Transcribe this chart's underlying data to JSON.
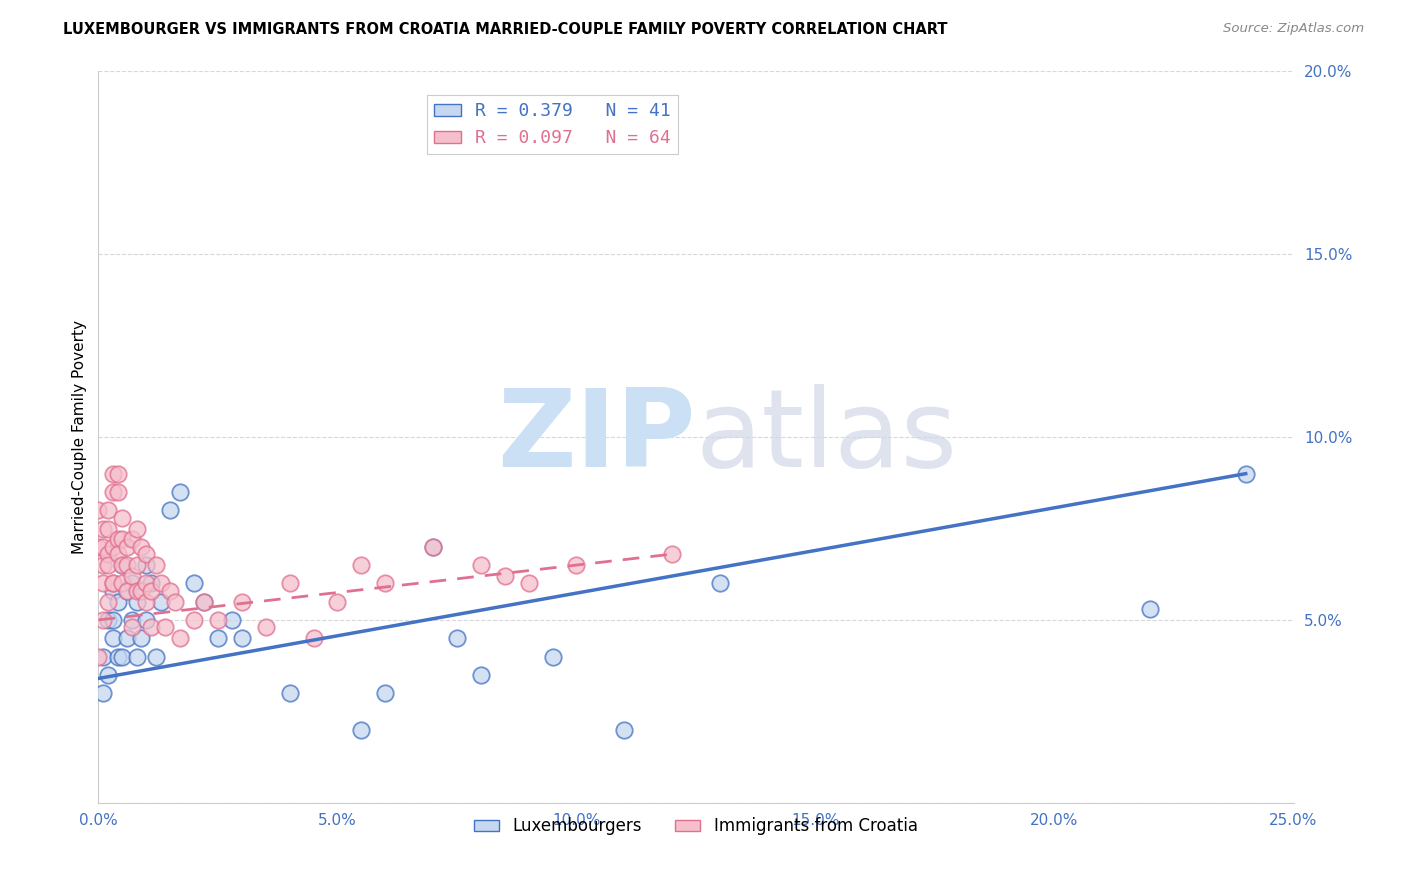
{
  "title": "LUXEMBOURGER VS IMMIGRANTS FROM CROATIA MARRIED-COUPLE FAMILY POVERTY CORRELATION CHART",
  "source": "Source: ZipAtlas.com",
  "ylabel": "Married-Couple Family Poverty",
  "r_blue": 0.379,
  "n_blue": 41,
  "r_pink": 0.097,
  "n_pink": 64,
  "xlim": [
    0,
    0.25
  ],
  "ylim": [
    0,
    0.2
  ],
  "xticks": [
    0.0,
    0.05,
    0.1,
    0.15,
    0.2,
    0.25
  ],
  "yticks": [
    0.0,
    0.05,
    0.1,
    0.15,
    0.2
  ],
  "xtick_labels": [
    "0.0%",
    "5.0%",
    "10.0%",
    "15.0%",
    "20.0%",
    "25.0%"
  ],
  "ytick_labels": [
    "",
    "5.0%",
    "10.0%",
    "15.0%",
    "20.0%"
  ],
  "blue_fill": "#c5d8f0",
  "blue_edge": "#4472c4",
  "pink_fill": "#f5c0cc",
  "pink_edge": "#e07090",
  "blue_line_color": "#4472c4",
  "pink_line_color": "#e07090",
  "background_color": "#ffffff",
  "grid_color": "#d8d8d8",
  "blue_x": [
    0.001,
    0.001,
    0.002,
    0.002,
    0.003,
    0.003,
    0.003,
    0.004,
    0.004,
    0.005,
    0.005,
    0.006,
    0.006,
    0.007,
    0.007,
    0.008,
    0.008,
    0.009,
    0.01,
    0.01,
    0.011,
    0.012,
    0.013,
    0.015,
    0.017,
    0.02,
    0.022,
    0.025,
    0.028,
    0.03,
    0.04,
    0.055,
    0.06,
    0.07,
    0.075,
    0.08,
    0.095,
    0.11,
    0.13,
    0.22,
    0.24
  ],
  "blue_y": [
    0.04,
    0.03,
    0.05,
    0.035,
    0.058,
    0.05,
    0.045,
    0.055,
    0.04,
    0.065,
    0.04,
    0.058,
    0.045,
    0.05,
    0.06,
    0.055,
    0.04,
    0.045,
    0.065,
    0.05,
    0.06,
    0.04,
    0.055,
    0.08,
    0.085,
    0.06,
    0.055,
    0.045,
    0.05,
    0.045,
    0.03,
    0.02,
    0.03,
    0.07,
    0.045,
    0.035,
    0.04,
    0.02,
    0.06,
    0.053,
    0.09
  ],
  "pink_x": [
    0.0,
    0.0,
    0.0,
    0.001,
    0.001,
    0.001,
    0.001,
    0.001,
    0.002,
    0.002,
    0.002,
    0.002,
    0.002,
    0.003,
    0.003,
    0.003,
    0.003,
    0.003,
    0.004,
    0.004,
    0.004,
    0.004,
    0.005,
    0.005,
    0.005,
    0.005,
    0.006,
    0.006,
    0.006,
    0.007,
    0.007,
    0.007,
    0.008,
    0.008,
    0.008,
    0.009,
    0.009,
    0.01,
    0.01,
    0.01,
    0.011,
    0.011,
    0.012,
    0.013,
    0.014,
    0.015,
    0.016,
    0.017,
    0.02,
    0.022,
    0.025,
    0.03,
    0.035,
    0.04,
    0.045,
    0.05,
    0.055,
    0.06,
    0.07,
    0.08,
    0.085,
    0.09,
    0.1,
    0.12
  ],
  "pink_y": [
    0.04,
    0.07,
    0.08,
    0.05,
    0.06,
    0.07,
    0.075,
    0.065,
    0.055,
    0.068,
    0.075,
    0.065,
    0.08,
    0.06,
    0.07,
    0.085,
    0.09,
    0.06,
    0.072,
    0.085,
    0.09,
    0.068,
    0.06,
    0.072,
    0.078,
    0.065,
    0.07,
    0.058,
    0.065,
    0.072,
    0.062,
    0.048,
    0.058,
    0.075,
    0.065,
    0.07,
    0.058,
    0.06,
    0.068,
    0.055,
    0.058,
    0.048,
    0.065,
    0.06,
    0.048,
    0.058,
    0.055,
    0.045,
    0.05,
    0.055,
    0.05,
    0.055,
    0.048,
    0.06,
    0.045,
    0.055,
    0.065,
    0.06,
    0.07,
    0.065,
    0.062,
    0.06,
    0.065,
    0.068
  ],
  "blue_line_x": [
    0.0,
    0.24
  ],
  "blue_line_y": [
    0.034,
    0.09
  ],
  "pink_line_x": [
    0.0,
    0.12
  ],
  "pink_line_y": [
    0.05,
    0.068
  ]
}
